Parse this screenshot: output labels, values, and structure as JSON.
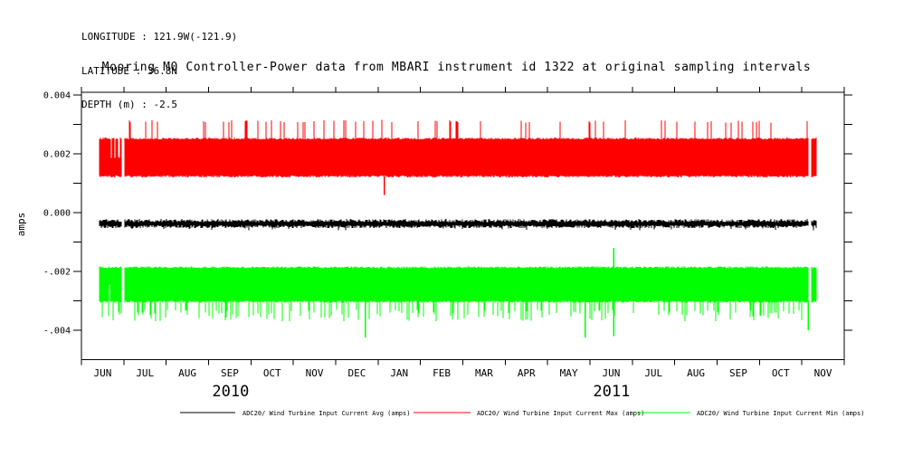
{
  "header": {
    "longitude": "LONGITUDE : 121.9W(-121.9)",
    "latitude": "LATITUDE : 36.8N",
    "depth": "DEPTH (m) : -2.5"
  },
  "title": "Mooring M0 Controller-Power data from MBARI instrument id 1322 at original sampling intervals",
  "chart_data": {
    "type": "line",
    "title": "Mooring M0 Controller-Power data from MBARI instrument id 1322 at original sampling intervals",
    "ylabel": "amps",
    "ylim": [
      -0.005,
      0.0041
    ],
    "y_major_ticks": [
      {
        "label": "0.004",
        "value": 0.004
      },
      {
        "label": "0.002",
        "value": 0.002
      },
      {
        "label": "0.000",
        "value": 0.0
      },
      {
        "label": "-.002",
        "value": -0.002
      },
      {
        "label": "-.004",
        "value": -0.004
      }
    ],
    "y_minor_ticks": [
      0.003,
      0.001,
      -0.001,
      -0.003
    ],
    "x_axis": {
      "months": [
        "JUN",
        "JUL",
        "AUG",
        "SEP",
        "OCT",
        "NOV",
        "DEC",
        "JAN",
        "FEB",
        "MAR",
        "APR",
        "MAY",
        "JUN",
        "JUL",
        "AUG",
        "SEP",
        "OCT",
        "NOV"
      ],
      "years": [
        {
          "label": "2010",
          "center_month_index": 3.52
        },
        {
          "label": "2011",
          "center_month_index": 12.51
        }
      ]
    },
    "time_range_month_index": [
      0.43,
      17.33
    ],
    "data_gaps_month_index": [
      [
        0.955,
        1.005
      ],
      [
        17.16,
        17.22
      ]
    ],
    "series": [
      {
        "name": "ADC20/ Wind Turbine Input Current Max (amps)",
        "color": "#ff0000",
        "band": [
          0.00123,
          0.00252
        ],
        "edge_noise": 3e-05,
        "spikes": {
          "direction": "up",
          "value": 0.0031,
          "jitter": 5e-05,
          "density": 0.09
        },
        "ragged_start_month_range": [
          0.62,
          0.95
        ],
        "notable": [
          {
            "month_index": 7.15,
            "from": 0.00123,
            "to": 0.0006
          }
        ]
      },
      {
        "name": "ADC20/ Wind Turbine Input Current Min (amps)",
        "color": "#00ff00",
        "band": [
          -0.00303,
          -0.00186
        ],
        "edge_noise": 3e-05,
        "spikes": {
          "direction": "down",
          "value": -0.0035,
          "jitter": 0.0002,
          "density": 0.22
        },
        "ragged_start_month_range": [
          0.62,
          0.95
        ],
        "notable": [
          {
            "month_index": 6.7,
            "from": -0.00303,
            "to": -0.00425
          },
          {
            "month_index": 11.89,
            "from": -0.00303,
            "to": -0.00424
          },
          {
            "month_index": 12.56,
            "from": -0.0012,
            "to": -0.0042
          },
          {
            "month_index": 17.15,
            "from": -0.00303,
            "to": -0.004
          }
        ]
      },
      {
        "name": "ADC20/ Wind Turbine Input Current Avg (amps)",
        "color": "#000000",
        "band": [
          -0.00048,
          -0.00027
        ],
        "edge_noise": 5e-05,
        "spikes": {
          "direction": "down",
          "value": -0.00056,
          "jitter": 4e-05,
          "density": 0.05
        },
        "notable": []
      }
    ],
    "legend": [
      {
        "name": "ADC20/ Wind Turbine Input Current Avg (amps)",
        "color": "#000000"
      },
      {
        "name": "ADC20/ Wind Turbine Input Current Max (amps)",
        "color": "#ff0000"
      },
      {
        "name": "ADC20/ Wind Turbine Input Current Min (amps)",
        "color": "#00ff00"
      }
    ]
  }
}
